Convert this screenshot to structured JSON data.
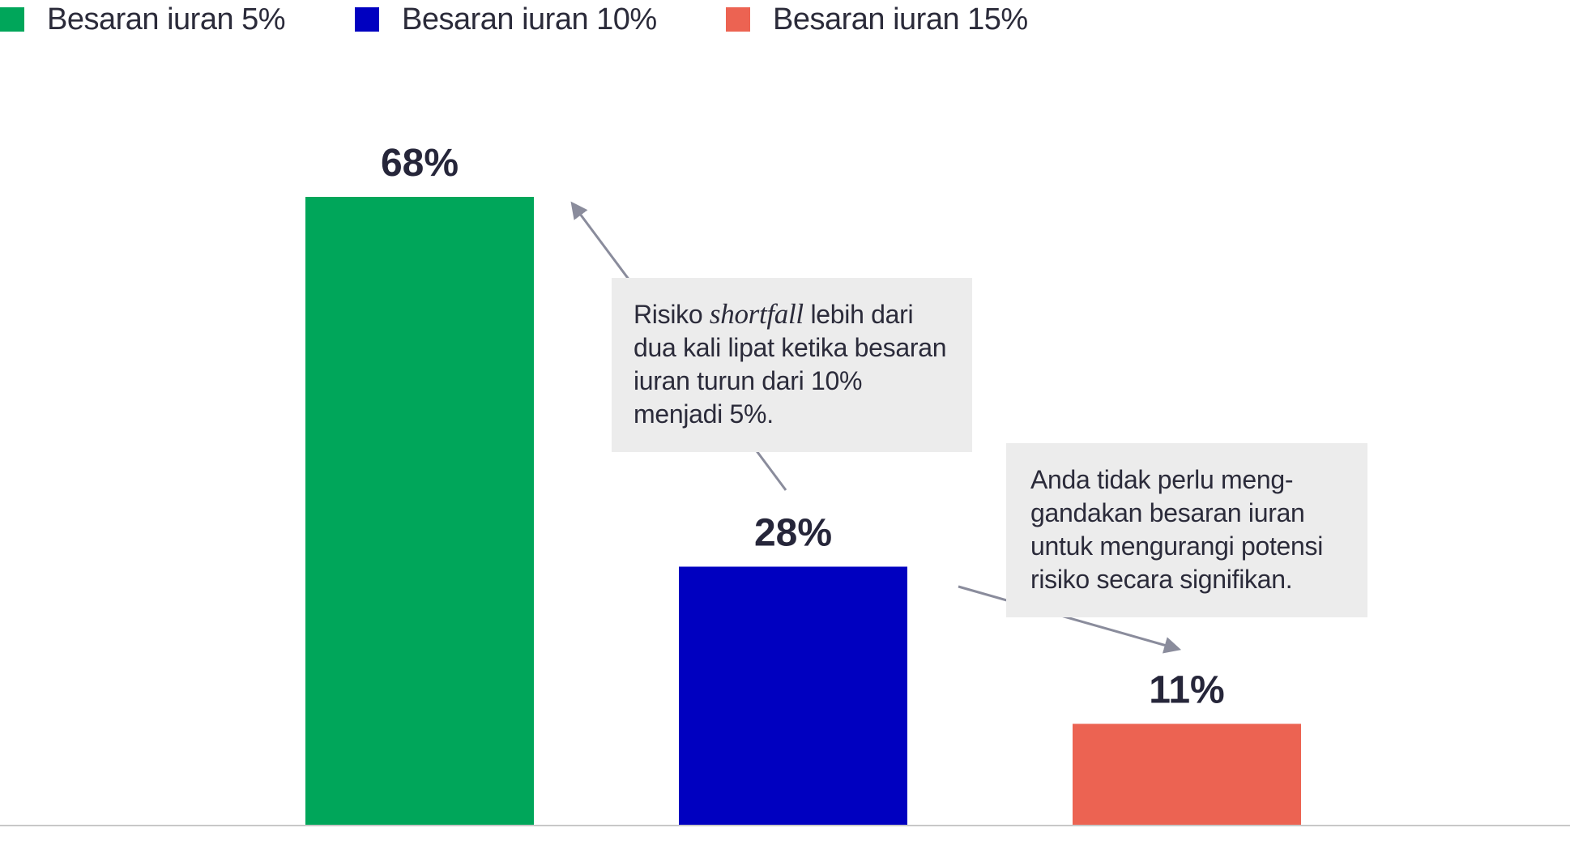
{
  "chart_data": {
    "type": "bar",
    "categories": [
      "Besaran iuran 5%",
      "Besaran iuran 10%",
      "Besaran iuran 15%"
    ],
    "values": [
      68,
      28,
      11
    ],
    "data_labels": [
      "68%",
      "28%",
      "11%"
    ],
    "colors": [
      "#00a65a",
      "#0000c0",
      "#ec6352"
    ],
    "ylim": [
      0,
      75
    ],
    "legend": {
      "placement": "top-left",
      "entries": [
        "Besaran iuran 5%",
        "Besaran iuran 10%",
        "Besaran iuran 15%"
      ]
    },
    "grid": false,
    "annotations": [
      {
        "pre": "Risiko ",
        "italic": "shortfall",
        "lines": [
          " lebih dari",
          "dua kali lipat ketika besaran",
          "iuran turun dari 10%",
          "menjadi 5%."
        ],
        "connects": [
          "Besaran iuran 10%",
          "Besaran iuran 5%"
        ]
      },
      {
        "lines": [
          "Anda tidak perlu meng-",
          "gandakan besaran iuran",
          "untuk mengurangi potensi",
          "risiko secara signifikan."
        ],
        "connects": [
          "Besaran iuran 10%",
          "Besaran iuran 15%"
        ]
      }
    ]
  },
  "colors": {
    "annotation_background": "#ececec",
    "arrow": "#8a8c9c",
    "baseline": "#c8c8c8",
    "text": "#2b2b3a"
  }
}
